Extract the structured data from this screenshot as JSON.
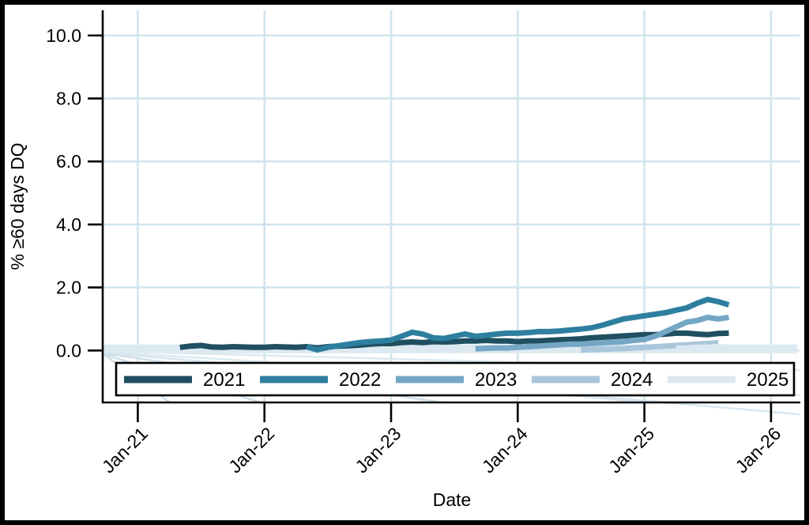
{
  "colors": {
    "background": "#ffffff",
    "frame": "#000000",
    "axis": "#000000",
    "gridline": "#d2e4ed",
    "legend_border": "#000000",
    "legend_background": "#ffffff"
  },
  "chart_data": {
    "type": "line",
    "title": "",
    "xlabel": "Date",
    "ylabel": "% ≥60 days DQ",
    "x_unit": "months since Jan-2021",
    "xlim_months": [
      -3.25,
      62.7
    ],
    "ylim": [
      -1.65,
      10.8
    ],
    "grid": true,
    "legend_position": "bottom-inside-box",
    "x_ticks": [
      {
        "m": 0,
        "label": "Jan-21"
      },
      {
        "m": 12,
        "label": "Jan-22"
      },
      {
        "m": 24,
        "label": "Jan-23"
      },
      {
        "m": 36,
        "label": "Jan-24"
      },
      {
        "m": 48,
        "label": "Jan-25"
      },
      {
        "m": 60,
        "label": "Jan-26"
      }
    ],
    "y_ticks": [
      {
        "v": 0,
        "label": "0.0"
      },
      {
        "v": 2,
        "label": "2.0"
      },
      {
        "v": 4,
        "label": "4.0"
      },
      {
        "v": 6,
        "label": "6.0"
      },
      {
        "v": 8,
        "label": "8.0"
      },
      {
        "v": 10,
        "label": "10.0"
      }
    ],
    "zero_band": {
      "from_month": -3.25,
      "to_month": 62.5,
      "value": 0.05,
      "thickness_px": 11,
      "note": "thick pale band at ~0 spanning full plot width"
    },
    "series": [
      {
        "name": "2021",
        "color": "#1f4f60",
        "start_month": 4,
        "values": [
          0.1,
          0.14,
          0.16,
          0.11,
          0.1,
          0.12,
          0.11,
          0.1,
          0.1,
          0.12,
          0.11,
          0.1,
          0.12,
          0.08,
          0.12,
          0.14,
          0.15,
          0.17,
          0.2,
          0.22,
          0.22,
          0.25,
          0.27,
          0.25,
          0.28,
          0.27,
          0.28,
          0.3,
          0.3,
          0.32,
          0.3,
          0.3,
          0.28,
          0.3,
          0.3,
          0.32,
          0.34,
          0.35,
          0.37,
          0.4,
          0.42,
          0.44,
          0.46,
          0.48,
          0.5,
          0.5,
          0.52,
          0.55,
          0.55,
          0.52,
          0.5,
          0.54,
          0.55
        ]
      },
      {
        "name": "2022",
        "color": "#2e7f9f",
        "start_month": 16,
        "values": [
          0.12,
          0.02,
          0.1,
          0.15,
          0.2,
          0.25,
          0.28,
          0.3,
          0.33,
          0.45,
          0.58,
          0.52,
          0.4,
          0.38,
          0.45,
          0.52,
          0.45,
          0.48,
          0.52,
          0.55,
          0.55,
          0.57,
          0.6,
          0.6,
          0.62,
          0.65,
          0.68,
          0.72,
          0.8,
          0.9,
          1.0,
          1.05,
          1.1,
          1.15,
          1.2,
          1.28,
          1.35,
          1.5,
          1.62,
          1.55,
          1.45
        ]
      },
      {
        "name": "2023",
        "color": "#74a7c4",
        "start_month": 32,
        "values": [
          0.05,
          0.07,
          0.08,
          0.08,
          0.1,
          0.12,
          0.14,
          0.16,
          0.18,
          0.2,
          0.2,
          0.22,
          0.24,
          0.26,
          0.28,
          0.32,
          0.35,
          0.45,
          0.6,
          0.75,
          0.9,
          0.95,
          1.05,
          1.0,
          1.05
        ]
      },
      {
        "name": "2024",
        "color": "#a9c6da",
        "start_month": 42,
        "values": [
          0.02,
          0.03,
          0.04,
          0.05,
          0.06,
          0.08,
          0.1,
          0.12,
          0.14,
          0.16,
          0.18,
          0.2,
          0.22,
          0.25
        ]
      },
      {
        "name": "2025",
        "color": "#dce9f1",
        "start_month": 51,
        "values": [
          0.06,
          0.08,
          0.1,
          0.1,
          0.12,
          0.1
        ]
      }
    ]
  }
}
